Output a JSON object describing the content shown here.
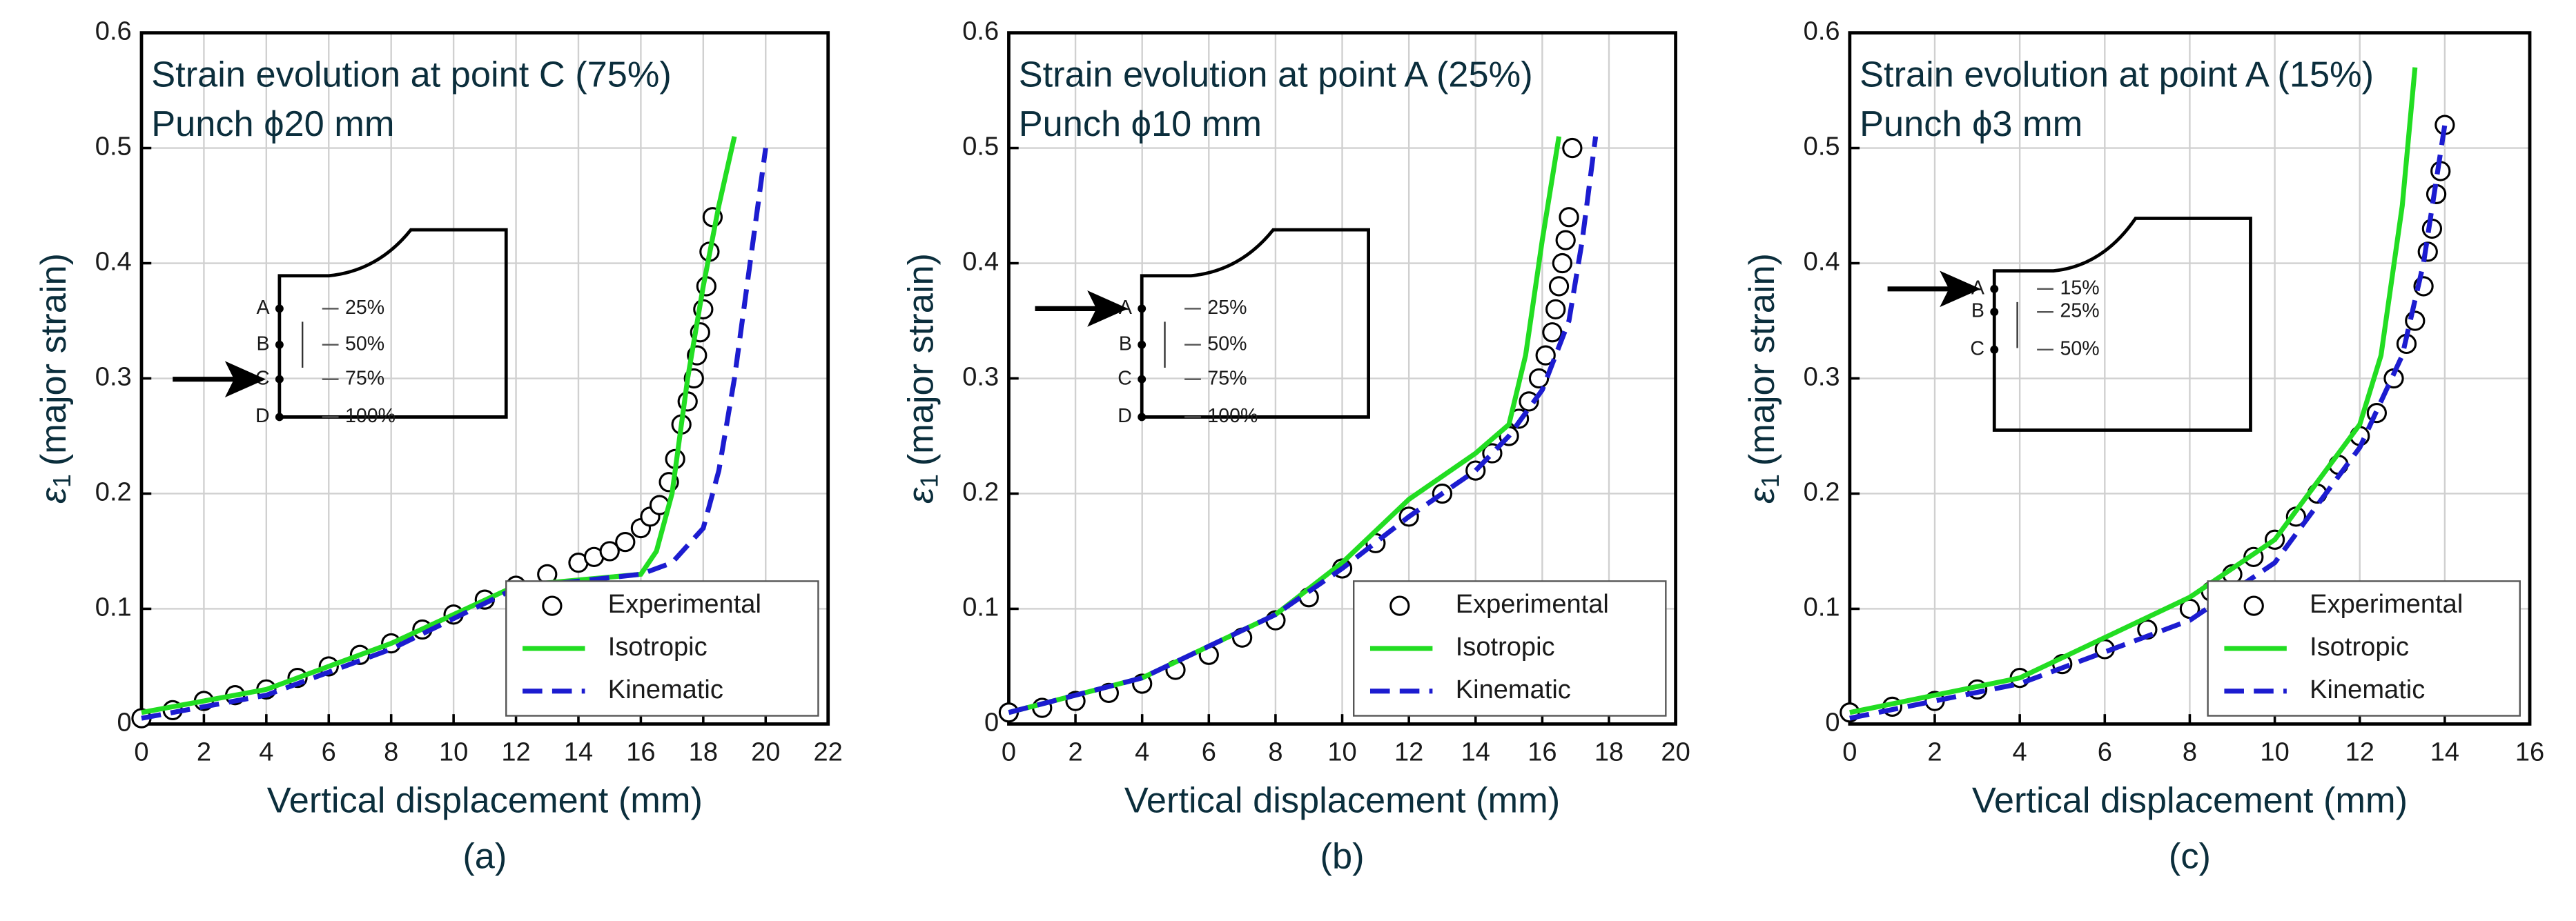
{
  "chart_data": [
    {
      "type": "line",
      "title": "Strain evolution at point C (75%)",
      "subtitle": "Punch ϕ20 mm",
      "xlabel": "Vertical displacement (mm)",
      "ylabel": [
        "ε",
        "1",
        "(major strain)"
      ],
      "caption": "(a)",
      "xlim": [
        0,
        22
      ],
      "xticks": [
        0,
        2,
        4,
        6,
        8,
        10,
        12,
        14,
        16,
        18,
        20,
        22
      ],
      "ylim": [
        0,
        0.6
      ],
      "yticks": [
        0,
        0.1,
        0.2,
        0.3,
        0.4,
        0.5,
        0.6
      ],
      "grid": true,
      "legend": "lower right",
      "inset": {
        "points": [
          "A",
          "B",
          "C",
          "D"
        ],
        "labels": [
          "25%",
          "50%",
          "75%",
          "100%"
        ]
      },
      "series": [
        {
          "name": "Experimental",
          "color": "#000000",
          "style": "marker",
          "x": [
            0,
            1,
            2,
            3,
            4,
            5,
            6,
            7,
            8,
            9,
            10,
            11,
            12,
            13,
            14,
            14.5,
            15,
            15.5,
            16,
            16.3,
            16.6,
            16.9,
            17.1,
            17.3,
            17.5,
            17.7,
            17.8,
            17.9,
            18,
            18.1,
            18.2,
            18.3
          ],
          "values": [
            0.005,
            0.012,
            0.02,
            0.025,
            0.03,
            0.04,
            0.05,
            0.06,
            0.07,
            0.082,
            0.095,
            0.108,
            0.12,
            0.13,
            0.14,
            0.145,
            0.15,
            0.158,
            0.17,
            0.18,
            0.19,
            0.21,
            0.23,
            0.26,
            0.28,
            0.3,
            0.32,
            0.34,
            0.36,
            0.38,
            0.41,
            0.44
          ]
        },
        {
          "name": "Isotropic",
          "color": "#22dd22",
          "style": "solid",
          "x": [
            0,
            4,
            8,
            12,
            14,
            16,
            16.5,
            17,
            17.5,
            18,
            18.5,
            19
          ],
          "values": [
            0.01,
            0.03,
            0.07,
            0.12,
            0.125,
            0.13,
            0.15,
            0.2,
            0.3,
            0.38,
            0.45,
            0.51
          ]
        },
        {
          "name": "Kinematic",
          "color": "#1c1cd0",
          "style": "dashed",
          "x": [
            0,
            4,
            8,
            12,
            16,
            17,
            18,
            18.5,
            19,
            19.5,
            20
          ],
          "values": [
            0.005,
            0.025,
            0.065,
            0.118,
            0.13,
            0.14,
            0.17,
            0.22,
            0.3,
            0.4,
            0.5
          ]
        }
      ]
    },
    {
      "type": "line",
      "title": "Strain evolution at point A (25%)",
      "subtitle": "Punch ϕ10 mm",
      "xlabel": "Vertical displacement (mm)",
      "ylabel": [
        "ε",
        "1",
        "(major strain)"
      ],
      "caption": "(b)",
      "xlim": [
        0,
        20
      ],
      "xticks": [
        0,
        2,
        4,
        6,
        8,
        10,
        12,
        14,
        16,
        18,
        20
      ],
      "ylim": [
        0,
        0.6
      ],
      "yticks": [
        0,
        0.1,
        0.2,
        0.3,
        0.4,
        0.5,
        0.6
      ],
      "grid": true,
      "legend": "lower right",
      "inset": {
        "points": [
          "A",
          "B",
          "C",
          "D"
        ],
        "labels": [
          "25%",
          "50%",
          "75%",
          "100%"
        ]
      },
      "series": [
        {
          "name": "Experimental",
          "color": "#000000",
          "style": "marker",
          "x": [
            0,
            1,
            2,
            3,
            4,
            5,
            6,
            7,
            8,
            9,
            10,
            11,
            12,
            13,
            14,
            14.5,
            15,
            15.3,
            15.6,
            15.9,
            16.1,
            16.3,
            16.4,
            16.5,
            16.6,
            16.7,
            16.8,
            16.9
          ],
          "values": [
            0.01,
            0.014,
            0.02,
            0.027,
            0.035,
            0.047,
            0.06,
            0.075,
            0.09,
            0.11,
            0.135,
            0.157,
            0.18,
            0.2,
            0.22,
            0.235,
            0.25,
            0.265,
            0.28,
            0.3,
            0.32,
            0.34,
            0.36,
            0.38,
            0.4,
            0.42,
            0.44,
            0.5
          ]
        },
        {
          "name": "Isotropic",
          "color": "#22dd22",
          "style": "solid",
          "x": [
            0,
            4,
            8,
            10,
            12,
            14,
            15,
            15.5,
            16,
            16.5
          ],
          "values": [
            0.01,
            0.04,
            0.095,
            0.14,
            0.195,
            0.235,
            0.26,
            0.32,
            0.42,
            0.51
          ]
        },
        {
          "name": "Kinematic",
          "color": "#1c1cd0",
          "style": "dashed",
          "x": [
            0,
            4,
            8,
            10,
            12,
            14,
            15,
            16,
            16.8,
            17.2,
            17.6
          ],
          "values": [
            0.01,
            0.04,
            0.095,
            0.135,
            0.18,
            0.22,
            0.25,
            0.29,
            0.35,
            0.42,
            0.51
          ]
        }
      ]
    },
    {
      "type": "line",
      "title": "Strain evolution at point A (15%)",
      "subtitle": "Punch ϕ3 mm",
      "xlabel": "Vertical displacement (mm)",
      "ylabel": [
        "ε",
        "1",
        "(major strain)"
      ],
      "caption": "(c)",
      "xlim": [
        0,
        16
      ],
      "xticks": [
        0,
        2,
        4,
        6,
        8,
        10,
        12,
        14,
        16
      ],
      "ylim": [
        0,
        0.6
      ],
      "yticks": [
        0,
        0.1,
        0.2,
        0.3,
        0.4,
        0.5,
        0.6
      ],
      "grid": true,
      "legend": "lower right",
      "inset": {
        "points": [
          "A",
          "B",
          "C"
        ],
        "labels": [
          "15%",
          "25%",
          "50%"
        ]
      },
      "series": [
        {
          "name": "Experimental",
          "color": "#000000",
          "style": "marker",
          "x": [
            0,
            1,
            2,
            3,
            4,
            5,
            6,
            7,
            8,
            8.5,
            9,
            9.5,
            10,
            10.5,
            11,
            11.5,
            12,
            12.4,
            12.8,
            13.1,
            13.3,
            13.5,
            13.6,
            13.7,
            13.8,
            13.9,
            14
          ],
          "values": [
            0.01,
            0.015,
            0.02,
            0.03,
            0.04,
            0.052,
            0.065,
            0.082,
            0.1,
            0.115,
            0.13,
            0.145,
            0.16,
            0.18,
            0.2,
            0.225,
            0.25,
            0.27,
            0.3,
            0.33,
            0.35,
            0.38,
            0.41,
            0.43,
            0.46,
            0.48,
            0.52
          ]
        },
        {
          "name": "Isotropic",
          "color": "#22dd22",
          "style": "solid",
          "x": [
            0,
            4,
            8,
            10,
            12,
            12.5,
            13,
            13.3
          ],
          "values": [
            0.01,
            0.04,
            0.11,
            0.16,
            0.26,
            0.32,
            0.45,
            0.57
          ]
        },
        {
          "name": "Kinematic",
          "color": "#1c1cd0",
          "style": "dashed",
          "x": [
            0,
            4,
            8,
            10,
            12,
            13,
            13.5,
            14
          ],
          "values": [
            0.005,
            0.035,
            0.09,
            0.14,
            0.24,
            0.32,
            0.4,
            0.52
          ]
        }
      ]
    }
  ]
}
